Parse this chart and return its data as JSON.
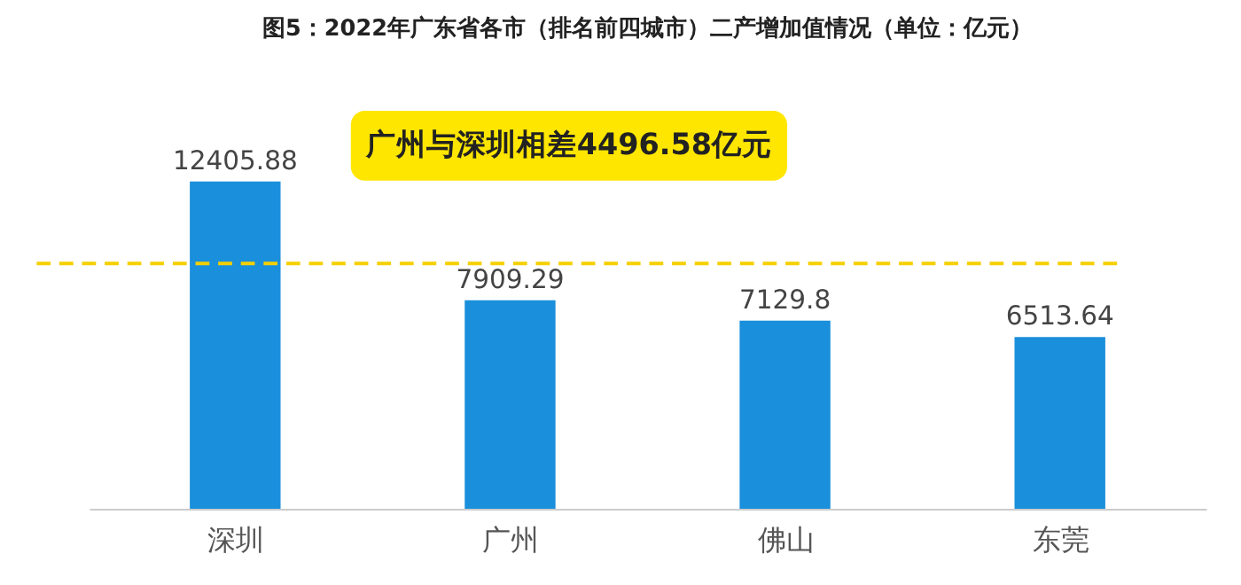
{
  "chart_data": {
    "type": "bar",
    "title": "图5：2022年广东省各市（排名前四城市）二产增加值情况（单位：亿元）",
    "categories": [
      "深圳",
      "广州",
      "佛山",
      "东莞"
    ],
    "values": [
      12405.88,
      7909.29,
      7129.8,
      6513.64
    ],
    "color": "#1a8fdc",
    "data_labels": true,
    "grid": false,
    "ref_lines": [
      {
        "axis": "y",
        "value": 9300,
        "color": "#f5d000",
        "line_style": "dashed"
      }
    ],
    "annotations": [
      "广州与深圳相差4496.58亿元"
    ]
  }
}
